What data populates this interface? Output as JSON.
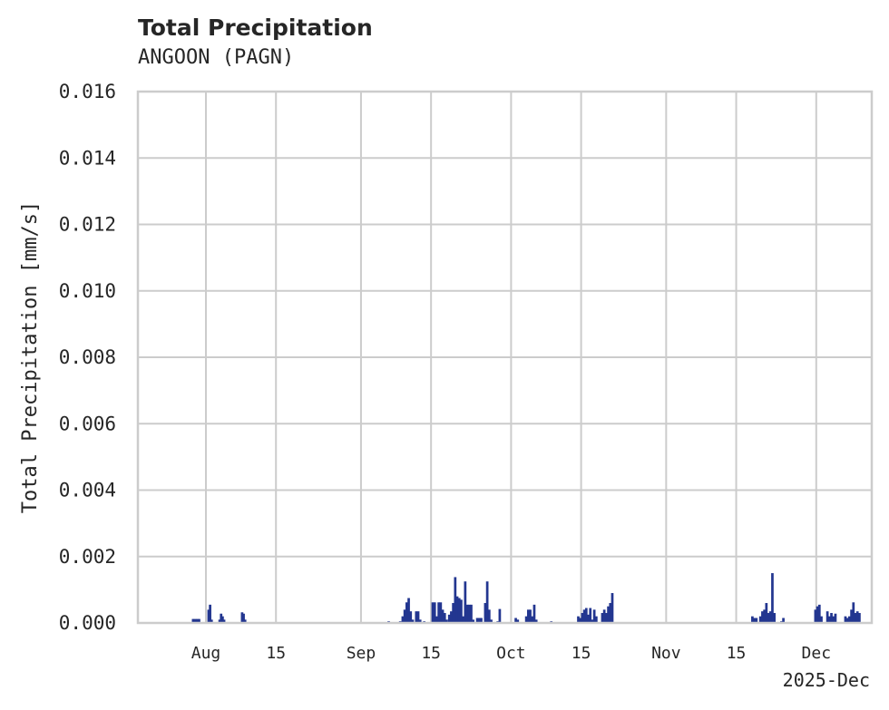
{
  "header": {
    "title": "Total Precipitation",
    "subtitle": "ANGOON (PAGN)"
  },
  "chart_data": {
    "type": "bar",
    "title": "Total Precipitation",
    "subtitle": "ANGOON (PAGN)",
    "xlabel": "",
    "x_offset_label": "2025-Dec",
    "ylabel": "Total Precipitation [mm/s]",
    "ylim": [
      0,
      0.016
    ],
    "yticks": [
      "0.000",
      "0.002",
      "0.004",
      "0.006",
      "0.008",
      "0.010",
      "0.012",
      "0.014",
      "0.016"
    ],
    "xticks": [
      {
        "label": "Aug",
        "day": 0
      },
      {
        "label": "15",
        "day": 14
      },
      {
        "label": "Sep",
        "day": 31
      },
      {
        "label": "15",
        "day": 45
      },
      {
        "label": "Oct",
        "day": 61
      },
      {
        "label": "15",
        "day": 75
      },
      {
        "label": "Nov",
        "day": 92
      },
      {
        "label": "15",
        "day": 106
      },
      {
        "label": "Dec",
        "day": 122
      }
    ],
    "xlim_days_from_aug1": [
      -13.6,
      133.1
    ],
    "grid": true,
    "color": "#233690",
    "series": [
      {
        "name": "Total Precipitation",
        "points": [
          [
            -2.6,
            0.00012
          ],
          [
            -2.2,
            0.00012
          ],
          [
            -1.8,
            0.00012
          ],
          [
            -1.4,
            0.00012
          ],
          [
            0.5,
            0.0004
          ],
          [
            0.8,
            0.00055
          ],
          [
            1.1,
            0.0001
          ],
          [
            2.7,
            0.0001
          ],
          [
            3.0,
            0.00028
          ],
          [
            3.3,
            0.0002
          ],
          [
            3.6,
            0.0001
          ],
          [
            7.2,
            0.00032
          ],
          [
            7.5,
            0.00028
          ],
          [
            7.8,
            0.0001
          ],
          [
            36.5,
            5e-05
          ],
          [
            38.8,
            5e-05
          ],
          [
            39.3,
            0.0002
          ],
          [
            39.7,
            0.0004
          ],
          [
            40.1,
            0.00062
          ],
          [
            40.5,
            0.00075
          ],
          [
            40.9,
            0.00035
          ],
          [
            41.3,
            0.0001
          ],
          [
            42.0,
            0.00035
          ],
          [
            42.4,
            0.00035
          ],
          [
            42.8,
            0.0001
          ],
          [
            43.6,
            5e-05
          ],
          [
            45.3,
            0.00062
          ],
          [
            45.7,
            0.00062
          ],
          [
            46.1,
            0.0002
          ],
          [
            46.5,
            0.00062
          ],
          [
            46.9,
            0.00062
          ],
          [
            47.3,
            0.0004
          ],
          [
            47.7,
            0.0003
          ],
          [
            48.1,
            0.0001
          ],
          [
            48.6,
            0.00025
          ],
          [
            49.0,
            0.00035
          ],
          [
            49.4,
            0.0006
          ],
          [
            49.8,
            0.00138
          ],
          [
            50.2,
            0.0008
          ],
          [
            50.6,
            0.00075
          ],
          [
            51.0,
            0.0007
          ],
          [
            51.4,
            0.0002
          ],
          [
            51.8,
            0.00125
          ],
          [
            52.2,
            0.00055
          ],
          [
            52.6,
            0.00055
          ],
          [
            53.0,
            0.00055
          ],
          [
            53.4,
            0.0001
          ],
          [
            54.2,
            0.00015
          ],
          [
            54.6,
            0.00015
          ],
          [
            55.0,
            0.00015
          ],
          [
            55.8,
            0.0006
          ],
          [
            56.2,
            0.00125
          ],
          [
            56.6,
            0.0004
          ],
          [
            57.0,
            0.0001
          ],
          [
            58.3,
            5e-05
          ],
          [
            58.7,
            0.00042
          ],
          [
            61.9,
            0.00015
          ],
          [
            62.3,
            0.0001
          ],
          [
            64.0,
            0.0002
          ],
          [
            64.4,
            0.0004
          ],
          [
            64.8,
            0.0004
          ],
          [
            65.2,
            0.0002
          ],
          [
            65.6,
            0.00055
          ],
          [
            66.0,
            0.0001
          ],
          [
            69.0,
            5e-05
          ],
          [
            74.4,
            0.0002
          ],
          [
            74.8,
            0.00015
          ],
          [
            75.2,
            0.0003
          ],
          [
            75.6,
            0.0004
          ],
          [
            76.0,
            0.00045
          ],
          [
            76.4,
            0.00025
          ],
          [
            76.8,
            0.00045
          ],
          [
            77.2,
            0.0001
          ],
          [
            77.6,
            0.0004
          ],
          [
            78.0,
            0.0002
          ],
          [
            79.2,
            0.0003
          ],
          [
            79.6,
            0.0004
          ],
          [
            80.0,
            0.0003
          ],
          [
            80.4,
            0.0005
          ],
          [
            80.8,
            0.0006
          ],
          [
            81.2,
            0.0009
          ],
          [
            109.2,
            0.0002
          ],
          [
            109.6,
            0.00015
          ],
          [
            110.0,
            0.00015
          ],
          [
            110.8,
            0.0002
          ],
          [
            111.2,
            0.00035
          ],
          [
            111.6,
            0.0004
          ],
          [
            112.0,
            0.0006
          ],
          [
            112.4,
            0.0003
          ],
          [
            112.8,
            0.00035
          ],
          [
            113.2,
            0.0015
          ],
          [
            113.6,
            0.0003
          ],
          [
            115.0,
            5e-05
          ],
          [
            115.4,
            0.00015
          ],
          [
            121.8,
            0.0004
          ],
          [
            122.2,
            0.0005
          ],
          [
            122.6,
            0.00055
          ],
          [
            123.0,
            0.0002
          ],
          [
            124.2,
            0.00035
          ],
          [
            124.6,
            0.0002
          ],
          [
            125.0,
            0.0003
          ],
          [
            125.4,
            0.0002
          ],
          [
            125.8,
            0.00028
          ],
          [
            127.8,
            0.0002
          ],
          [
            128.2,
            0.00015
          ],
          [
            128.6,
            0.0002
          ],
          [
            129.0,
            0.0004
          ],
          [
            129.4,
            0.00062
          ],
          [
            129.8,
            0.0003
          ],
          [
            130.2,
            0.00035
          ],
          [
            130.6,
            0.0003
          ]
        ]
      }
    ]
  }
}
